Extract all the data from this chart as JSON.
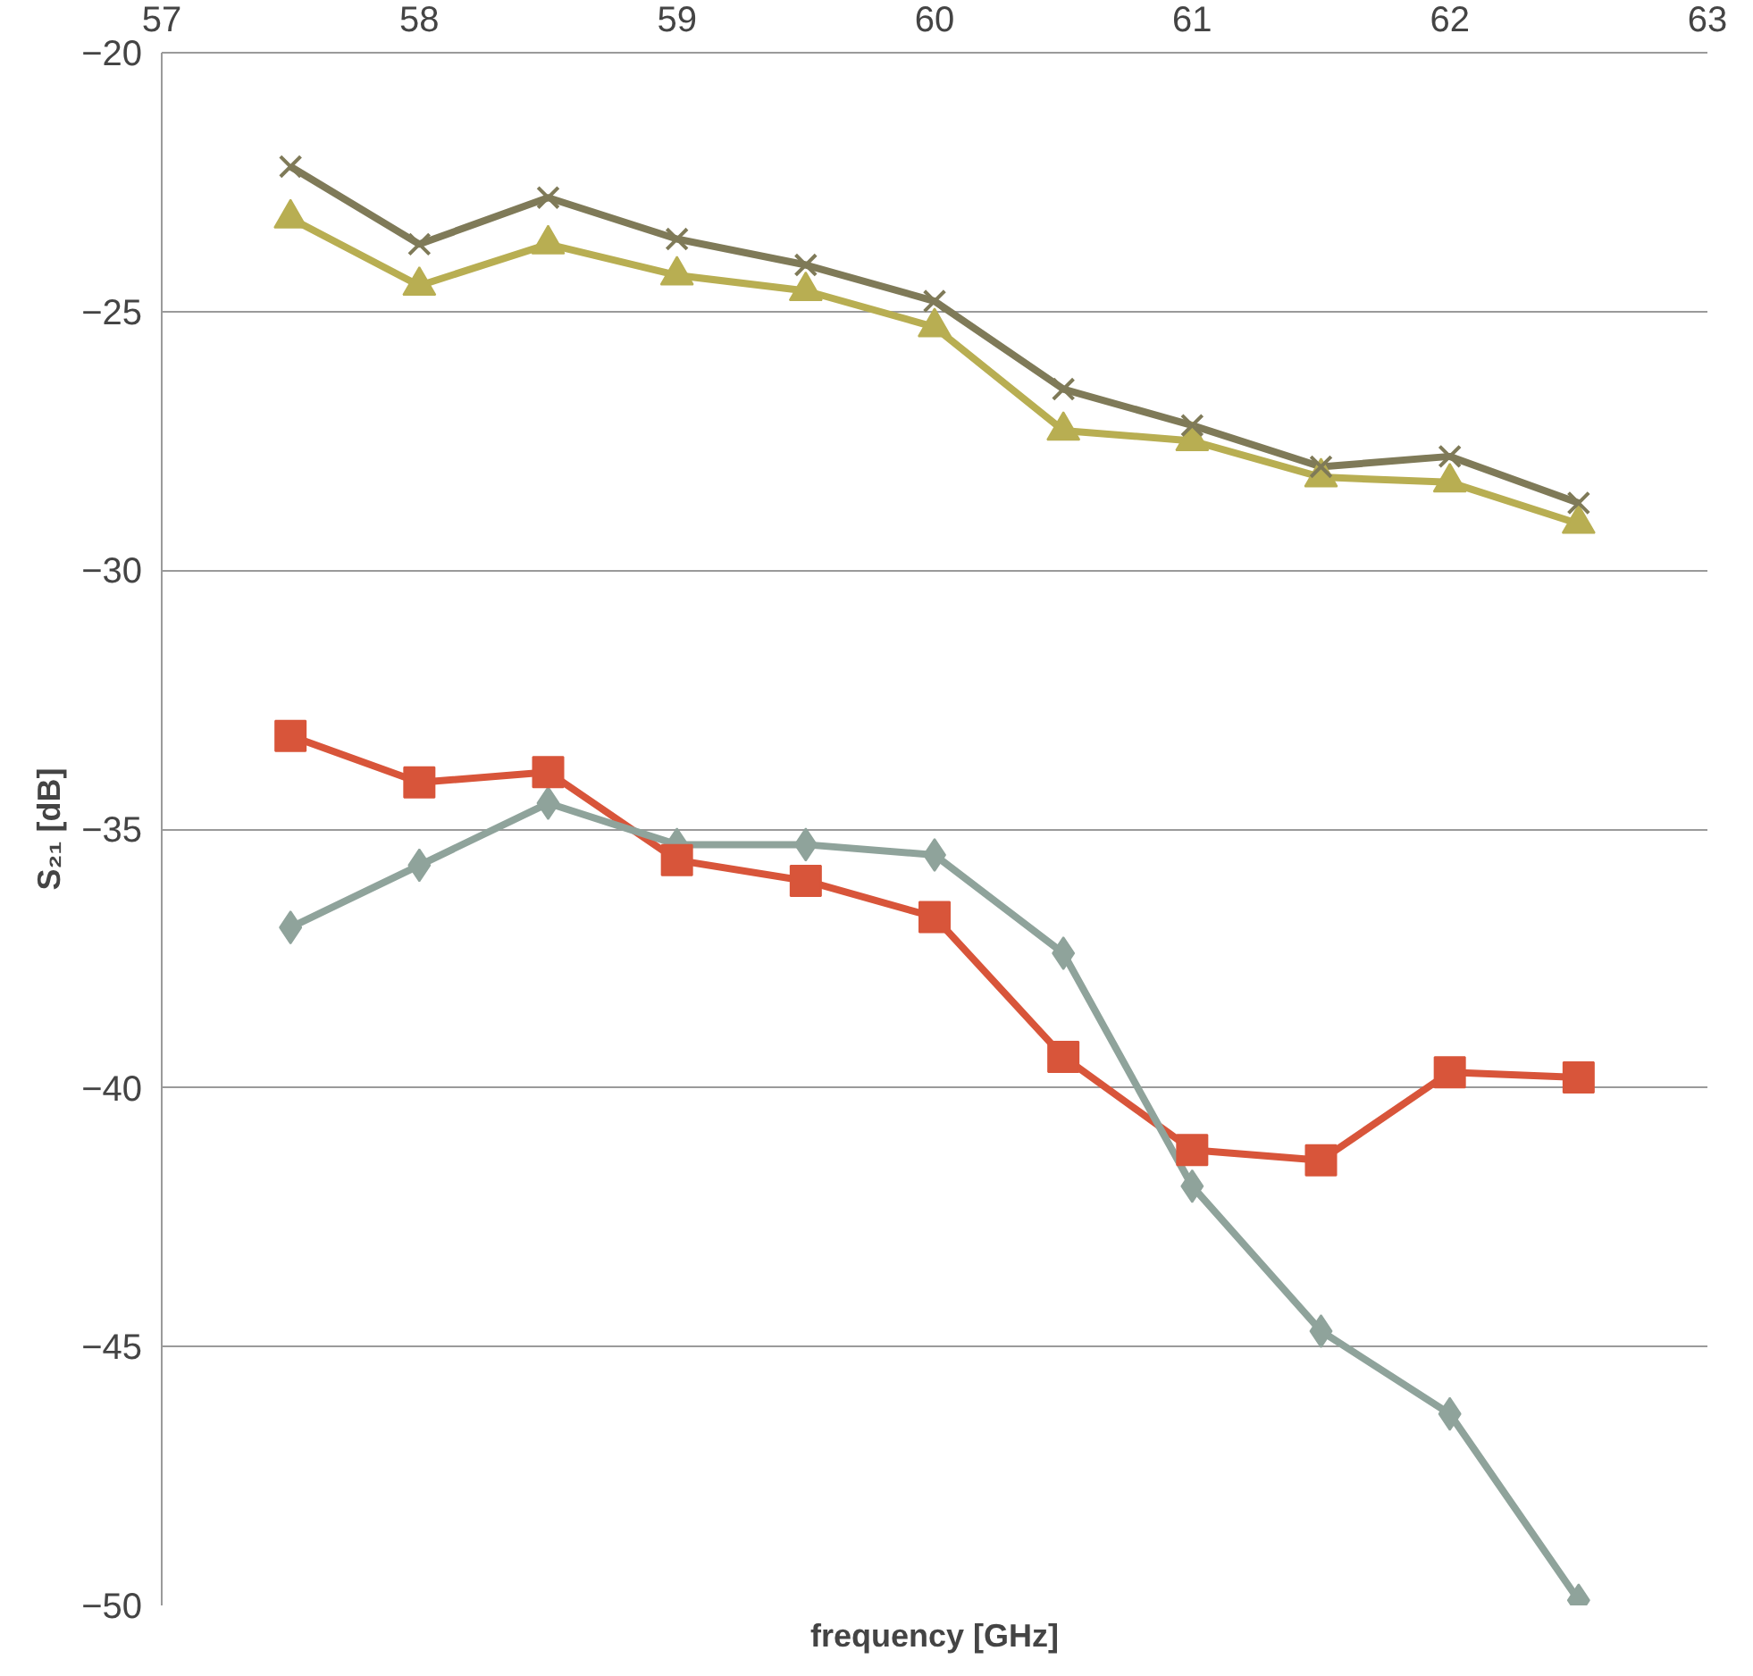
{
  "chart_data": {
    "type": "line",
    "xlabel": "frequency [GHz]",
    "ylabel": "S₂₁ [dB]",
    "x": [
      57.5,
      58,
      58.5,
      59,
      59.5,
      60,
      60.5,
      61,
      61.5,
      62,
      62.5
    ],
    "xlim": [
      57,
      63
    ],
    "xticks": [
      57,
      58,
      59,
      60,
      61,
      62,
      63
    ],
    "ylim": [
      -50,
      -20
    ],
    "yticks": [
      -50,
      -45,
      -40,
      -35,
      -30,
      -25,
      -20
    ],
    "grid": "y",
    "line_style": "solid",
    "series": [
      {
        "color": "#7f7a58",
        "marker": "cross",
        "values": [
          -22.2,
          -23.7,
          -22.8,
          -23.6,
          -24.1,
          -24.8,
          -26.5,
          -27.2,
          -28.0,
          -27.8,
          -28.7
        ]
      },
      {
        "color": "#b8ae52",
        "marker": "triangle",
        "values": [
          -23.2,
          -24.5,
          -23.7,
          -24.3,
          -24.6,
          -25.3,
          -27.3,
          -27.5,
          -28.2,
          -28.3,
          -29.1
        ]
      },
      {
        "color": "#d8553a",
        "marker": "square",
        "values": [
          -33.2,
          -34.1,
          -33.9,
          -35.6,
          -36.0,
          -36.7,
          -39.4,
          -41.2,
          -41.4,
          -39.7,
          -39.8
        ]
      },
      {
        "color": "#8fa39b",
        "marker": "diamond",
        "values": [
          -36.9,
          -35.7,
          -34.5,
          -35.3,
          -35.3,
          -35.5,
          -37.4,
          -41.9,
          -44.7,
          -46.3,
          -49.9
        ]
      }
    ]
  }
}
